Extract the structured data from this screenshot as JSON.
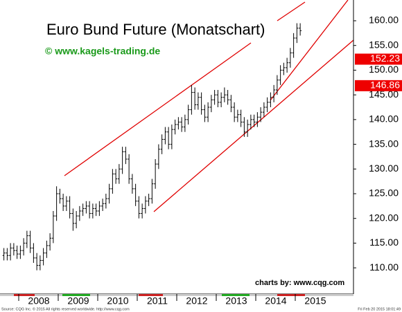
{
  "chart_data": {
    "type": "ohlc",
    "title": "Euro Bund Future (Monatschart)",
    "subtitle": "© www.kagels-trading.de",
    "credit": "charts by: www.cqg.com",
    "source": "Source: CQG Inc. © 2015 All rights reserved worldwide. http://www.cqg.com",
    "timestamp": "Fri Feb 20 2015 18:01:49",
    "color": "#000000",
    "categories": [
      null,
      null,
      null,
      null,
      null,
      "2008",
      null,
      null,
      null,
      null,
      null,
      null,
      null,
      null,
      null,
      null,
      null,
      "2009",
      null,
      null,
      null,
      null,
      null,
      null,
      null,
      null,
      null,
      null,
      null,
      "2010",
      null,
      null,
      null,
      null,
      null,
      null,
      null,
      null,
      null,
      null,
      null,
      "2011",
      null,
      null,
      null,
      null,
      null,
      null,
      null,
      null,
      null,
      null,
      null,
      "2012",
      null,
      null,
      null,
      null,
      null,
      null,
      null,
      null,
      null,
      null,
      null,
      "2013",
      null,
      null,
      null,
      null,
      null,
      null,
      null,
      null,
      null,
      null,
      null,
      "2014",
      null,
      null,
      null,
      null,
      null,
      null,
      null,
      null,
      null,
      null,
      null,
      "2015",
      null
    ],
    "open": [
      112.5,
      113.0,
      112.5,
      114.0,
      113.5,
      112.8,
      113.5,
      115.0,
      116.5,
      114.0,
      112.0,
      110.5,
      111.5,
      113.0,
      114.5,
      116.0,
      120.5,
      125.0,
      124.0,
      122.5,
      123.5,
      121.0,
      119.0,
      120.5,
      121.5,
      122.0,
      122.5,
      121.0,
      122.0,
      121.5,
      122.5,
      123.0,
      124.0,
      126.0,
      129.0,
      128.0,
      130.0,
      133.5,
      132.0,
      128.0,
      126.0,
      123.5,
      121.0,
      122.0,
      123.5,
      124.0,
      127.0,
      131.0,
      134.0,
      136.0,
      137.5,
      135.0,
      138.0,
      139.0,
      139.5,
      138.5,
      140.0,
      142.0,
      145.5,
      143.0,
      144.5,
      142.0,
      140.5,
      142.5,
      144.0,
      145.0,
      143.5,
      144.5,
      145.0,
      144.0,
      142.5,
      140.5,
      141.0,
      139.5,
      137.5,
      139.0,
      140.0,
      139.5,
      140.5,
      141.5,
      142.5,
      143.5,
      144.5,
      146.0,
      148.0,
      150.0,
      150.5,
      151.5,
      153.5,
      156.5,
      158.5
    ],
    "high": [
      114.0,
      114.0,
      115.0,
      115.0,
      114.5,
      114.5,
      116.0,
      117.5,
      117.5,
      115.0,
      113.0,
      112.5,
      114.0,
      115.5,
      117.0,
      121.5,
      126.5,
      126.0,
      125.0,
      124.5,
      124.5,
      122.0,
      121.5,
      122.5,
      123.0,
      123.5,
      123.5,
      123.0,
      123.0,
      123.5,
      124.0,
      125.0,
      127.0,
      130.0,
      130.0,
      131.0,
      134.5,
      134.5,
      133.0,
      129.0,
      127.0,
      124.5,
      123.0,
      124.5,
      125.0,
      128.0,
      132.0,
      135.0,
      137.0,
      138.5,
      138.5,
      139.0,
      140.0,
      140.5,
      140.5,
      141.0,
      143.0,
      147.0,
      146.5,
      145.5,
      145.5,
      143.0,
      143.5,
      145.0,
      146.0,
      146.0,
      145.5,
      146.5,
      146.0,
      145.0,
      143.5,
      142.0,
      142.0,
      140.5,
      140.0,
      141.0,
      141.0,
      141.5,
      142.5,
      143.5,
      144.5,
      145.5,
      147.0,
      149.0,
      151.0,
      151.5,
      152.5,
      154.5,
      157.5,
      159.5,
      159.5
    ],
    "low": [
      111.5,
      111.5,
      111.5,
      112.5,
      111.8,
      111.8,
      112.5,
      114.0,
      113.0,
      111.0,
      109.5,
      109.5,
      110.5,
      112.0,
      113.5,
      115.0,
      119.5,
      123.0,
      121.5,
      121.5,
      120.0,
      117.5,
      118.0,
      119.5,
      120.5,
      121.0,
      120.0,
      120.0,
      120.5,
      120.5,
      121.5,
      122.0,
      123.0,
      125.0,
      127.0,
      127.0,
      129.0,
      131.0,
      127.0,
      125.0,
      122.5,
      120.0,
      120.0,
      121.0,
      122.5,
      123.0,
      126.0,
      130.0,
      133.0,
      135.0,
      134.0,
      134.0,
      137.0,
      138.0,
      137.5,
      137.5,
      139.0,
      141.0,
      142.0,
      142.0,
      141.0,
      139.5,
      139.5,
      141.5,
      143.0,
      142.5,
      142.5,
      143.5,
      143.0,
      141.5,
      139.5,
      139.5,
      138.5,
      136.5,
      136.5,
      138.0,
      138.5,
      138.5,
      139.5,
      140.5,
      141.5,
      142.5,
      143.5,
      145.0,
      147.0,
      149.0,
      149.5,
      150.5,
      152.5,
      155.5,
      157.0
    ],
    "close": [
      113.0,
      112.5,
      114.0,
      113.5,
      112.8,
      113.5,
      115.0,
      116.5,
      114.0,
      112.0,
      110.5,
      111.5,
      113.0,
      114.5,
      116.0,
      120.5,
      125.0,
      124.0,
      122.5,
      123.5,
      121.0,
      119.0,
      120.5,
      121.5,
      122.0,
      122.5,
      121.0,
      122.0,
      121.5,
      122.5,
      123.0,
      124.0,
      126.0,
      129.0,
      128.0,
      130.0,
      133.5,
      132.0,
      128.0,
      126.0,
      123.5,
      121.0,
      122.0,
      123.5,
      124.0,
      127.0,
      131.0,
      134.0,
      136.0,
      137.5,
      135.0,
      138.0,
      139.0,
      139.5,
      138.5,
      140.0,
      142.0,
      145.5,
      143.0,
      144.5,
      142.0,
      140.5,
      142.5,
      144.0,
      145.0,
      143.5,
      144.5,
      145.0,
      144.0,
      142.5,
      140.5,
      141.0,
      139.5,
      137.5,
      139.0,
      140.0,
      139.5,
      140.5,
      141.5,
      142.5,
      143.5,
      144.5,
      146.0,
      148.0,
      150.0,
      150.5,
      151.5,
      153.5,
      156.5,
      158.5,
      158.0
    ],
    "ylim": [
      104.7,
      164.2
    ],
    "yticks": [
      {
        "value": 110,
        "label": "110.00"
      },
      {
        "value": 115,
        "label": "115.00"
      },
      {
        "value": 120,
        "label": "120.00"
      },
      {
        "value": 125,
        "label": "125.00"
      },
      {
        "value": 130,
        "label": "130.00"
      },
      {
        "value": 135,
        "label": "135.00"
      },
      {
        "value": 140,
        "label": "140.00"
      },
      {
        "value": 145,
        "label": "145.00"
      },
      {
        "value": 150,
        "label": "150.00"
      },
      {
        "value": 155,
        "label": "155.00"
      },
      {
        "value": 160,
        "label": "160.00"
      }
    ],
    "annotations": [
      {
        "value": 152.23,
        "label": "152.23"
      },
      {
        "value": 146.86,
        "label": "146.86"
      }
    ]
  }
}
